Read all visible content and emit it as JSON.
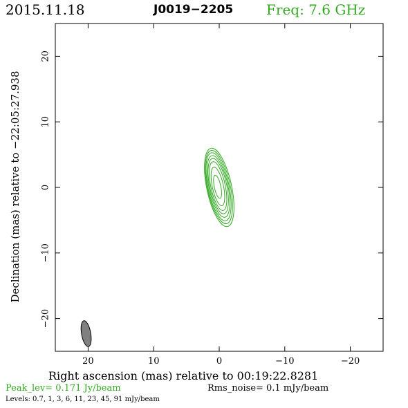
{
  "header": {
    "date": "2015.11.18",
    "source": "J0019−2205",
    "freq": "Freq: 7.6 GHz"
  },
  "colors": {
    "contour": "#33aa22",
    "beam_fill": "#808080",
    "freq_text": "#33aa22",
    "peak_text": "#33aa22"
  },
  "footer": {
    "peak": "Peak_lev=  0.171 Jy/beam",
    "rms": "Rms_noise=   0.1 mJy/beam",
    "levels": "Levels: 0.7,    1,    3,    6,   11,   23,   45,   91 mJy/beam"
  },
  "chart_data": {
    "type": "contour",
    "xlabel": "Right ascension (mas) relative to 00:19:22.8281",
    "ylabel": "Declination (mas) relative to −22:05:27.938",
    "xlim": [
      25,
      -25
    ],
    "ylim": [
      -25,
      25
    ],
    "x_ticks": [
      20,
      10,
      0,
      -10,
      -20
    ],
    "y_ticks": [
      20,
      10,
      0,
      -10,
      -20
    ],
    "x_tick_labels": [
      "20",
      "10",
      "0",
      "−10",
      "−20"
    ],
    "y_tick_labels": [
      "20",
      "10",
      "0",
      "−10",
      "−20"
    ],
    "levels_mJy": [
      0.7,
      1,
      3,
      6,
      11,
      23,
      45,
      91
    ],
    "contours": [
      {
        "cx": 0.0,
        "cy": 0.0,
        "a": 1.9,
        "b": 6.1,
        "angle_deg": 12
      },
      {
        "cx": 0.05,
        "cy": 0.05,
        "a": 1.75,
        "b": 5.7,
        "angle_deg": 12
      },
      {
        "cx": 0.1,
        "cy": 0.1,
        "a": 1.6,
        "b": 5.3,
        "angle_deg": 12
      },
      {
        "cx": 0.12,
        "cy": 0.15,
        "a": 1.45,
        "b": 4.8,
        "angle_deg": 12
      },
      {
        "cx": 0.15,
        "cy": 0.2,
        "a": 1.3,
        "b": 4.3,
        "angle_deg": 12
      },
      {
        "cx": 0.18,
        "cy": 0.2,
        "a": 1.1,
        "b": 3.8,
        "angle_deg": 12
      },
      {
        "cx": 0.2,
        "cy": 0.15,
        "a": 0.85,
        "b": 3.0,
        "angle_deg": 12
      },
      {
        "cx": 0.25,
        "cy": 0.1,
        "a": 0.5,
        "b": 1.8,
        "angle_deg": 12
      }
    ],
    "beam": {
      "cx": 20.3,
      "cy": -22.3,
      "a": 0.7,
      "b": 2.0,
      "angle_deg": 10
    }
  }
}
